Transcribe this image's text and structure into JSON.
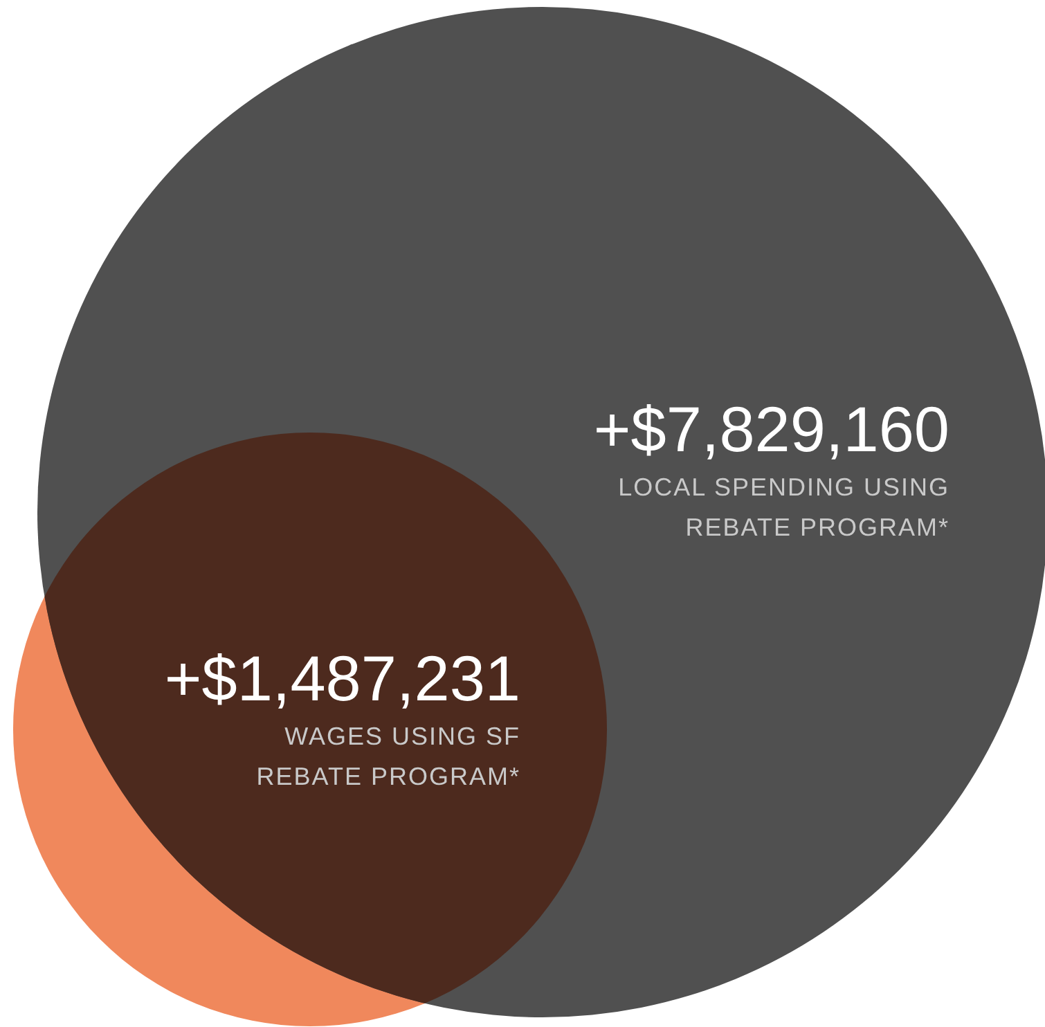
{
  "chart_data": {
    "type": "other",
    "categories": [
      "LOCAL SPENDING USING REBATE PROGRAM*",
      "WAGES USING SF REBATE PROGRAM*"
    ],
    "values": [
      7829160,
      1487231
    ],
    "value_labels": [
      "+$7,829,160",
      "+$1,487,231"
    ],
    "colors": [
      "#505050",
      "#f0885c"
    ]
  }
}
